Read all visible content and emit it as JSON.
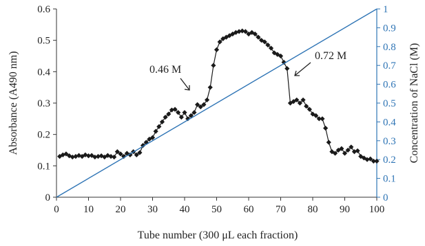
{
  "chart_data": {
    "type": "line",
    "xlabel": "Tube number (300 μL each fraction)",
    "ylabel": "Absorbance (A490 nm)",
    "y2label": "Concentration of NaCl (M)",
    "xlim": [
      0,
      100
    ],
    "ylim": [
      0,
      0.6
    ],
    "y2lim": [
      0,
      1
    ],
    "x_ticks": [
      "0",
      "10",
      "20",
      "30",
      "40",
      "50",
      "60",
      "70",
      "80",
      "90",
      "100"
    ],
    "y_ticks": [
      "0",
      "0.1",
      "0.2",
      "0.3",
      "0.4",
      "0.5",
      "0.6"
    ],
    "y2_ticks": [
      "0",
      "0.1",
      "0.2",
      "0.3",
      "0.4",
      "0.5",
      "0.6",
      "0.7",
      "0.8",
      "0.9",
      "1"
    ],
    "grid": false,
    "series": [
      {
        "color": "#1a1a1a",
        "marker": "diamond",
        "axis": "left",
        "x": [
          1,
          2,
          3,
          4,
          5,
          6,
          7,
          8,
          9,
          10,
          11,
          12,
          13,
          14,
          15,
          16,
          17,
          18,
          19,
          20,
          21,
          22,
          23,
          24,
          25,
          26,
          27,
          28,
          29,
          30,
          31,
          32,
          33,
          34,
          35,
          36,
          37,
          38,
          39,
          40,
          41,
          42,
          43,
          44,
          45,
          46,
          47,
          48,
          49,
          50,
          51,
          52,
          53,
          54,
          55,
          56,
          57,
          58,
          59,
          60,
          61,
          62,
          63,
          64,
          65,
          66,
          67,
          68,
          69,
          70,
          71,
          72,
          73,
          74,
          75,
          76,
          77,
          78,
          79,
          80,
          81,
          82,
          83,
          84,
          85,
          86,
          87,
          88,
          89,
          90,
          91,
          92,
          93,
          94,
          95,
          96,
          97,
          98,
          99,
          100
        ],
        "y": [
          0.13,
          0.135,
          0.138,
          0.132,
          0.128,
          0.13,
          0.133,
          0.13,
          0.135,
          0.132,
          0.133,
          0.128,
          0.13,
          0.132,
          0.128,
          0.133,
          0.13,
          0.128,
          0.145,
          0.138,
          0.13,
          0.14,
          0.135,
          0.145,
          0.135,
          0.142,
          0.165,
          0.175,
          0.185,
          0.19,
          0.21,
          0.225,
          0.24,
          0.255,
          0.265,
          0.278,
          0.28,
          0.27,
          0.255,
          0.27,
          0.25,
          0.26,
          0.27,
          0.295,
          0.288,
          0.295,
          0.31,
          0.35,
          0.42,
          0.47,
          0.495,
          0.505,
          0.51,
          0.515,
          0.52,
          0.525,
          0.528,
          0.53,
          0.528,
          0.52,
          0.525,
          0.52,
          0.51,
          0.5,
          0.495,
          0.485,
          0.475,
          0.46,
          0.455,
          0.45,
          0.43,
          0.41,
          0.3,
          0.305,
          0.31,
          0.3,
          0.31,
          0.29,
          0.28,
          0.265,
          0.26,
          0.25,
          0.25,
          0.22,
          0.175,
          0.145,
          0.14,
          0.15,
          0.155,
          0.14,
          0.15,
          0.16,
          0.145,
          0.148,
          0.13,
          0.125,
          0.12,
          0.122,
          0.115,
          0.115
        ]
      },
      {
        "color": "#2e74b5",
        "marker": "none",
        "axis": "right",
        "x": [
          0,
          100
        ],
        "y": [
          0,
          1
        ]
      }
    ],
    "annotations": [
      {
        "text": "0.46 M",
        "x": 41,
        "y": 0.25
      },
      {
        "text": "0.72 M",
        "x": 73,
        "y": 0.29
      }
    ]
  }
}
